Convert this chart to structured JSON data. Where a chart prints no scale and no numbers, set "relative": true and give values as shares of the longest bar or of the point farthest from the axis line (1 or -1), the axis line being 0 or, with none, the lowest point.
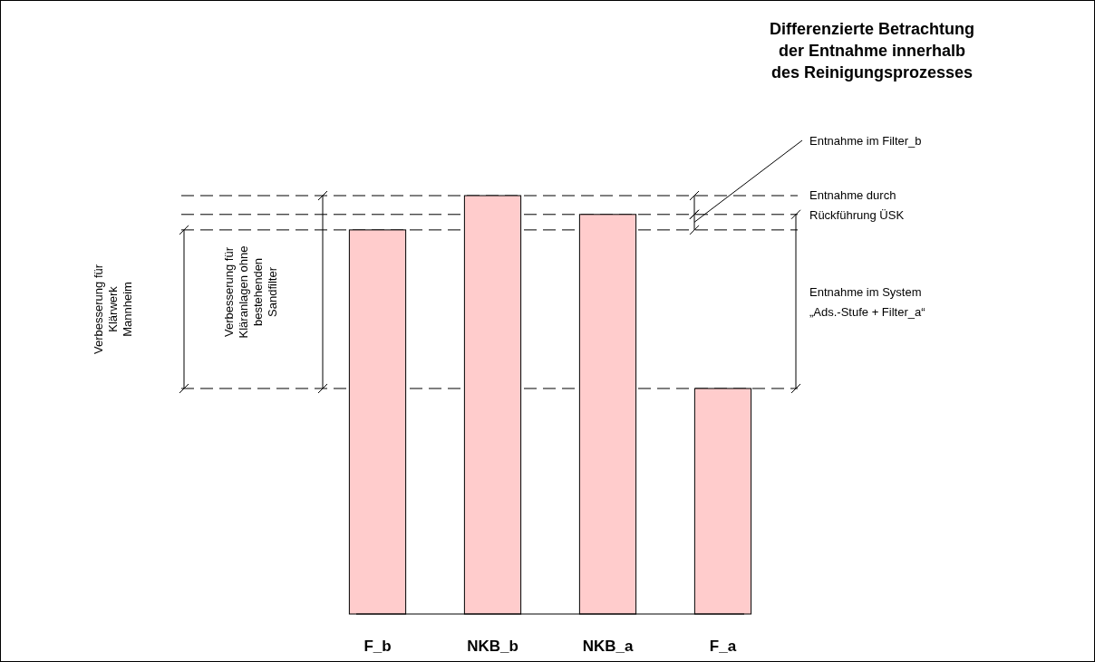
{
  "chart_data": {
    "type": "bar",
    "title": "Differenzierte Betrachtung\nder Entnahme innerhalb\ndes Reinigungsprozesses",
    "relative": true,
    "categories": [
      "F_b",
      "NKB_b",
      "NKB_a",
      "F_a"
    ],
    "values": [
      0.918,
      1,
      0.955,
      0.539
    ],
    "color": "#ffcccc",
    "line_style": "dashed",
    "annotations": [
      "Verbesserung für\nKlärwerk\nMannheim",
      "Verbesserung für\nKläranlagen ohne\nbestehenden\nSandfilter",
      "Entnahme im Filter_b",
      "Entnahme durch\nRückführung ÜSK",
      "Entnahme im System\n„Ads.-Stufe + Filter_a“"
    ]
  }
}
